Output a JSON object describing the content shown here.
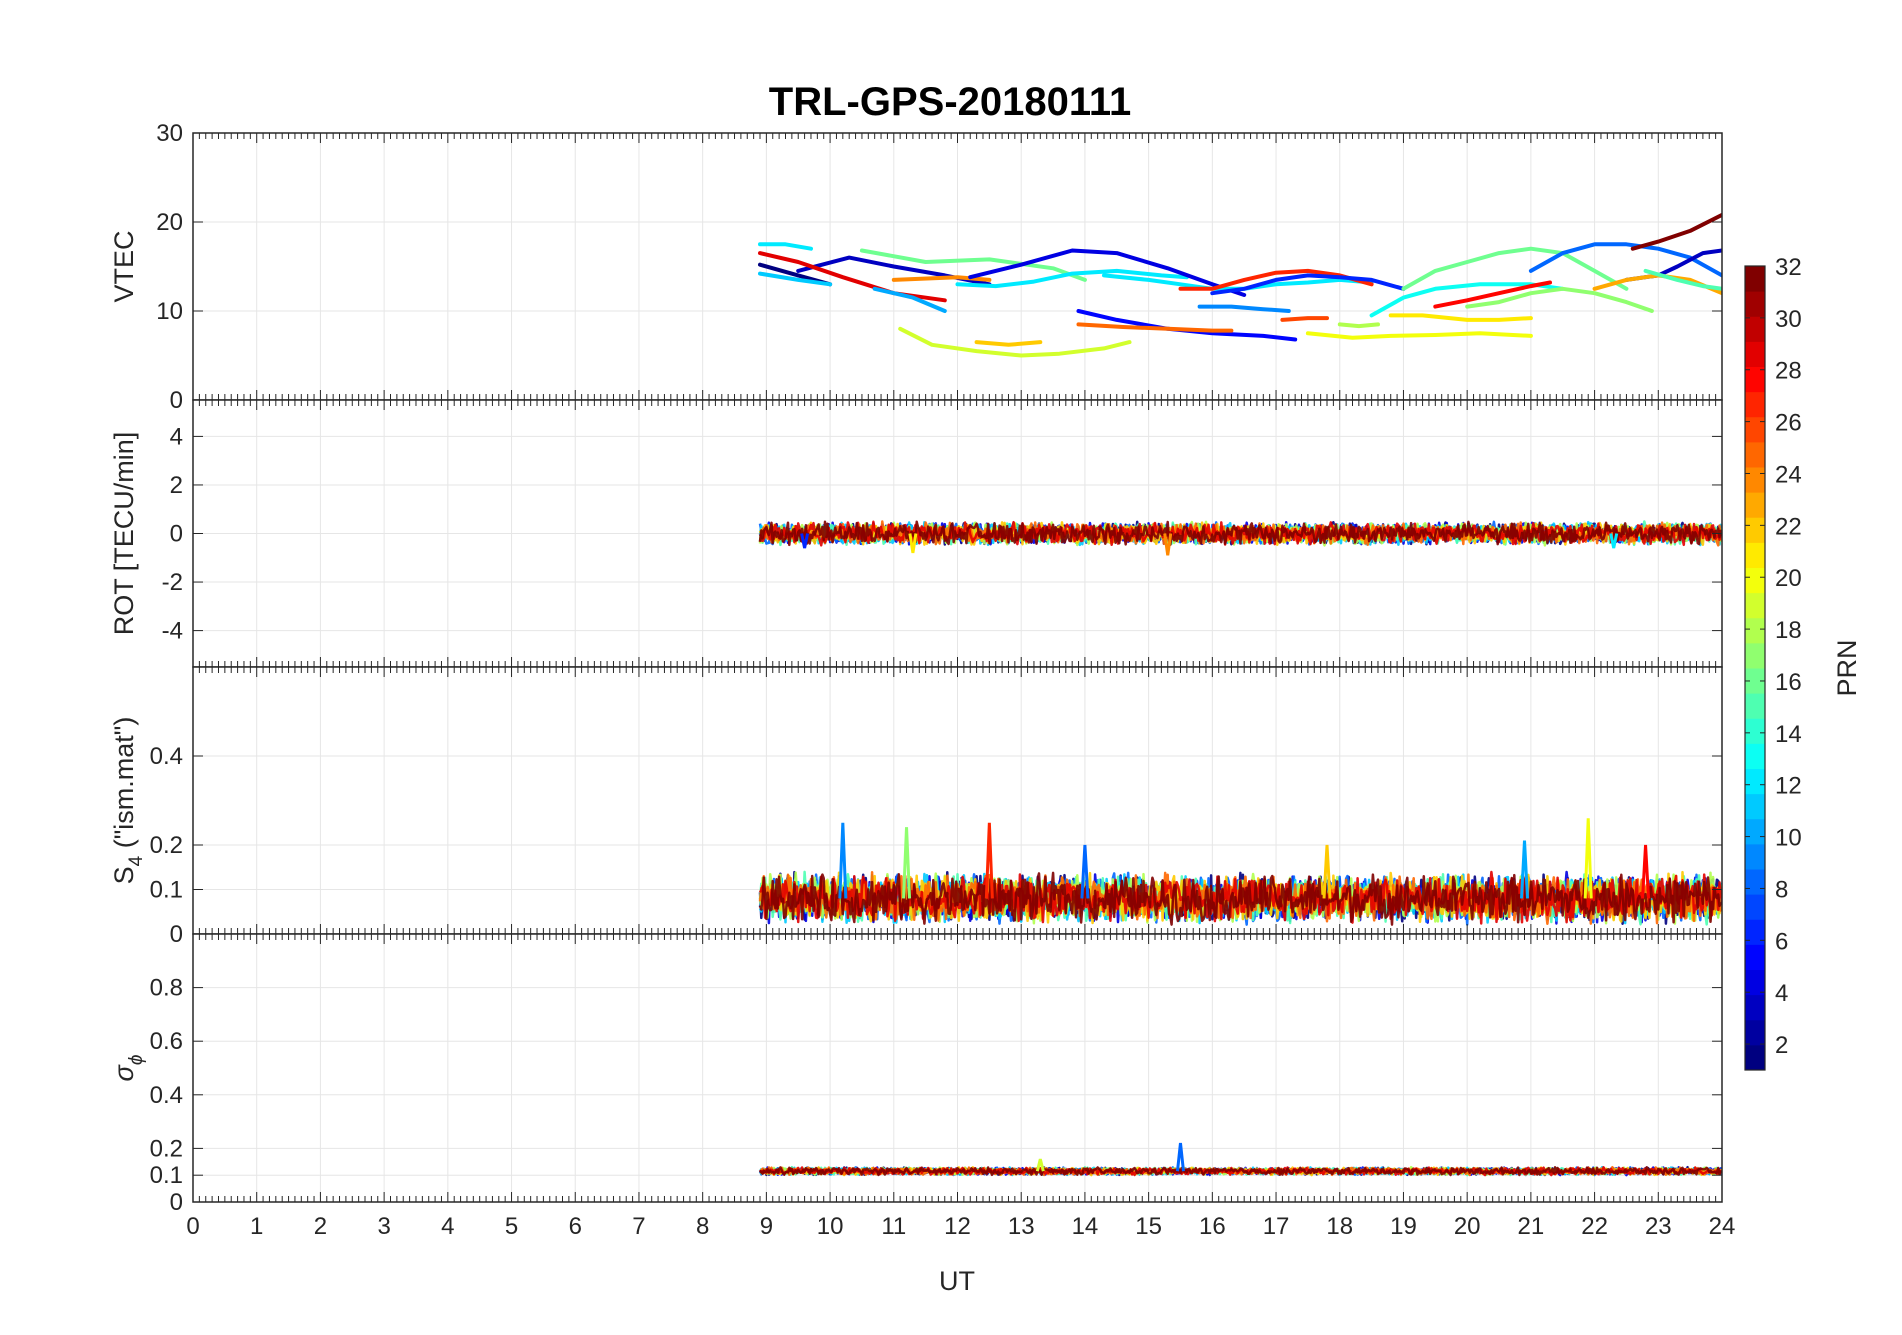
{
  "chart_data": {
    "type": "line",
    "title": "TRL-GPS-20180111",
    "xlabel": "UT",
    "xlim": [
      0,
      24
    ],
    "x_ticks": [
      "0",
      "1",
      "2",
      "3",
      "4",
      "5",
      "6",
      "7",
      "8",
      "9",
      "10",
      "11",
      "12",
      "13",
      "14",
      "15",
      "16",
      "17",
      "18",
      "19",
      "20",
      "21",
      "22",
      "23",
      "24"
    ],
    "grid": true,
    "panels": [
      {
        "id": "vtec",
        "ylabel": "VTEC",
        "ylim": [
          0,
          30
        ],
        "y_ticks": [
          0,
          10,
          20,
          30
        ],
        "y_tick_labels": [
          "0",
          "10",
          "20",
          "30"
        ],
        "series": [
          {
            "prn": 3,
            "x": [
              9.5,
              10.3,
              11.0,
              11.8,
              12.5
            ],
            "y": [
              14.5,
              16.0,
              15.0,
              14.0,
              13.0
            ]
          },
          {
            "prn": 29,
            "x": [
              8.9,
              9.5,
              10.2,
              11.0,
              11.8
            ],
            "y": [
              16.5,
              15.5,
              13.8,
              12.0,
              11.2
            ]
          },
          {
            "prn": 1,
            "x": [
              8.9,
              9.5,
              10.0
            ],
            "y": [
              15.2,
              14.0,
              13.0
            ]
          },
          {
            "prn": 12,
            "x": [
              8.9,
              9.3,
              9.7
            ],
            "y": [
              17.5,
              17.5,
              17.0
            ]
          },
          {
            "prn": 11,
            "x": [
              8.9,
              9.5,
              10.0
            ],
            "y": [
              14.2,
              13.5,
              13.0
            ]
          },
          {
            "prn": 16,
            "x": [
              10.5,
              11.5,
              12.5,
              13.5,
              14.0
            ],
            "y": [
              16.8,
              15.5,
              15.8,
              14.8,
              13.5
            ]
          },
          {
            "prn": 10,
            "x": [
              10.7,
              11.3,
              11.8
            ],
            "y": [
              12.5,
              11.5,
              10.0
            ]
          },
          {
            "prn": 24,
            "x": [
              11.0,
              12.0,
              12.5
            ],
            "y": [
              13.5,
              13.8,
              13.5
            ]
          },
          {
            "prn": 19,
            "x": [
              11.1,
              11.6,
              12.3,
              13.0,
              13.6,
              14.3,
              14.7
            ],
            "y": [
              8.0,
              6.2,
              5.5,
              5.0,
              5.2,
              5.8,
              6.5
            ]
          },
          {
            "prn": 22,
            "x": [
              12.3,
              12.8,
              13.3
            ],
            "y": [
              6.5,
              6.2,
              6.5
            ]
          },
          {
            "prn": 12,
            "x": [
              12.0,
              12.6,
              13.2,
              13.8,
              14.5,
              15.2,
              15.6
            ],
            "y": [
              13.0,
              12.8,
              13.3,
              14.2,
              14.5,
              14.0,
              13.8
            ]
          },
          {
            "prn": 4,
            "x": [
              12.2,
              13.0,
              13.8,
              14.5,
              15.3,
              16.0,
              16.5
            ],
            "y": [
              13.8,
              15.2,
              16.8,
              16.5,
              14.8,
              13.0,
              11.8
            ]
          },
          {
            "prn": 5,
            "x": [
              13.9,
              14.5,
              15.3,
              16.0,
              16.8,
              17.3
            ],
            "y": [
              10.0,
              9.0,
              8.0,
              7.5,
              7.2,
              6.8
            ]
          },
          {
            "prn": 25,
            "x": [
              13.9,
              14.6,
              15.3,
              16.0,
              16.3
            ],
            "y": [
              8.5,
              8.2,
              8.0,
              7.8,
              7.8
            ]
          },
          {
            "prn": 12,
            "x": [
              14.3,
              15.0,
              15.5,
              16.0,
              16.5,
              17.0,
              17.5,
              18.0,
              18.5
            ],
            "y": [
              14.0,
              13.5,
              13.0,
              12.5,
              12.5,
              13.0,
              13.2,
              13.5,
              13.2
            ]
          },
          {
            "prn": 27,
            "x": [
              15.5,
              16.0,
              16.5,
              17.0,
              17.5,
              18.0,
              18.5
            ],
            "y": [
              12.5,
              12.5,
              13.5,
              14.3,
              14.5,
              14.0,
              13.0
            ]
          },
          {
            "prn": 6,
            "x": [
              16.0,
              16.5,
              17.0,
              17.5,
              18.0,
              18.5,
              19.0
            ],
            "y": [
              12.0,
              12.5,
              13.5,
              14.0,
              13.8,
              13.5,
              12.5
            ]
          },
          {
            "prn": 9,
            "x": [
              15.8,
              16.3,
              16.8,
              17.2
            ],
            "y": [
              10.5,
              10.5,
              10.2,
              10.0
            ]
          },
          {
            "prn": 26,
            "x": [
              17.1,
              17.5,
              17.8
            ],
            "y": [
              9.0,
              9.2,
              9.2
            ]
          },
          {
            "prn": 20,
            "x": [
              17.5,
              18.2,
              18.8,
              19.5,
              20.2,
              21.0
            ],
            "y": [
              7.5,
              7.0,
              7.2,
              7.3,
              7.5,
              7.2
            ]
          },
          {
            "prn": 21,
            "x": [
              18.8,
              19.3,
              20.0,
              20.5,
              21.0
            ],
            "y": [
              9.5,
              9.5,
              9.0,
              9.0,
              9.2
            ]
          },
          {
            "prn": 18,
            "x": [
              18.0,
              18.3,
              18.6
            ],
            "y": [
              8.5,
              8.3,
              8.5
            ]
          },
          {
            "prn": 13,
            "x": [
              18.5,
              19.0,
              19.5,
              20.2,
              21.0,
              21.5
            ],
            "y": [
              9.5,
              11.5,
              12.5,
              13.0,
              13.0,
              12.5
            ]
          },
          {
            "prn": 16,
            "x": [
              19.0,
              19.5,
              20.0,
              20.5,
              21.0,
              21.5,
              22.0,
              22.5
            ],
            "y": [
              12.5,
              14.5,
              15.5,
              16.5,
              17.0,
              16.5,
              14.5,
              12.5
            ]
          },
          {
            "prn": 28,
            "x": [
              19.5,
              20.0,
              20.5,
              21.0,
              21.3
            ],
            "y": [
              10.5,
              11.2,
              12.0,
              12.8,
              13.2
            ]
          },
          {
            "prn": 17,
            "x": [
              20.0,
              20.5,
              21.0,
              21.5,
              22.0,
              22.5,
              22.9
            ],
            "y": [
              10.5,
              11.0,
              12.0,
              12.5,
              12.0,
              11.0,
              10.0
            ]
          },
          {
            "prn": 8,
            "x": [
              21.0,
              21.5,
              22.0,
              22.5,
              23.0,
              23.5,
              24.0
            ],
            "y": [
              14.5,
              16.5,
              17.5,
              17.5,
              17.0,
              16.0,
              14.0
            ]
          },
          {
            "prn": 3,
            "x": [
              22.5,
              23.0,
              23.3,
              23.7,
              24.0
            ],
            "y": [
              13.5,
              14.0,
              15.0,
              16.5,
              16.8
            ]
          },
          {
            "prn": 32,
            "x": [
              22.6,
              23.0,
              23.5,
              24.0
            ],
            "y": [
              17.0,
              17.8,
              19.0,
              20.8
            ]
          },
          {
            "prn": 23,
            "x": [
              22.0,
              22.5,
              23.0,
              23.5,
              24.0
            ],
            "y": [
              12.5,
              13.5,
              14.0,
              13.5,
              12.0
            ]
          },
          {
            "prn": 15,
            "x": [
              22.8,
              23.3,
              23.7,
              24.0
            ],
            "y": [
              14.5,
              13.5,
              12.8,
              12.5
            ]
          }
        ]
      },
      {
        "id": "rot",
        "ylabel": "ROT [TECU/min]",
        "ylim": [
          -5.5,
          5.5
        ],
        "y_ticks": [
          -4,
          -2,
          0,
          2,
          4
        ],
        "y_tick_labels": [
          "-4",
          "-2",
          "0",
          "2",
          "4"
        ],
        "noise_band": {
          "x_start": 8.9,
          "x_end": 24.0,
          "center": 0.0,
          "amplitude": 0.5,
          "spikes": [
            {
              "x": 9.6,
              "y": -0.6
            },
            {
              "x": 11.3,
              "y": -0.8
            },
            {
              "x": 15.3,
              "y": -0.9
            },
            {
              "x": 22.3,
              "y": -0.6
            }
          ]
        }
      },
      {
        "id": "s4",
        "ylabel": "S",
        "ylabel_subscript": "4",
        "ylabel_suffix": " (\"ism.mat\")",
        "ylim": [
          0,
          0.6
        ],
        "y_ticks": [
          0,
          0.1,
          0.2,
          0.4
        ],
        "y_tick_labels": [
          "0",
          "0.1",
          "0.2",
          "0.4"
        ],
        "noise_band": {
          "x_start": 8.9,
          "x_end": 24.0,
          "center": 0.08,
          "amplitude": 0.06,
          "spikes": [
            {
              "x": 10.2,
              "y": 0.25
            },
            {
              "x": 11.2,
              "y": 0.24
            },
            {
              "x": 12.5,
              "y": 0.25
            },
            {
              "x": 14.0,
              "y": 0.2
            },
            {
              "x": 17.8,
              "y": 0.2
            },
            {
              "x": 20.9,
              "y": 0.21
            },
            {
              "x": 21.9,
              "y": 0.26
            },
            {
              "x": 22.8,
              "y": 0.2
            }
          ]
        }
      },
      {
        "id": "sigma",
        "ylabel": "σ",
        "ylabel_subscript": "ϕ",
        "ylim": [
          0,
          1
        ],
        "y_ticks": [
          0,
          0.1,
          0.2,
          0.4,
          0.6,
          0.8
        ],
        "y_tick_labels": [
          "0",
          "0.1",
          "0.2",
          "0.4",
          "0.6",
          "0.8"
        ],
        "noise_band": {
          "x_start": 8.9,
          "x_end": 24.0,
          "center": 0.115,
          "amplitude": 0.015,
          "spikes": [
            {
              "x": 13.3,
              "y": 0.16
            },
            {
              "x": 15.5,
              "y": 0.22
            }
          ]
        }
      }
    ],
    "colorbar": {
      "label": "PRN",
      "range": [
        1,
        32
      ],
      "ticks": [
        2,
        4,
        6,
        8,
        10,
        12,
        14,
        16,
        18,
        20,
        22,
        24,
        26,
        28,
        30,
        32
      ],
      "tick_labels": [
        "2",
        "4",
        "6",
        "8",
        "10",
        "12",
        "14",
        "16",
        "18",
        "20",
        "22",
        "24",
        "26",
        "28",
        "30",
        "32"
      ],
      "colormap": "jet",
      "placement": "right"
    }
  }
}
